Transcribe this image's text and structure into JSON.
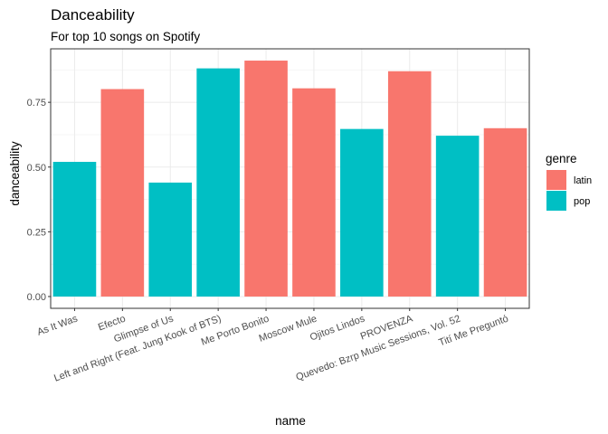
{
  "chart_data": {
    "type": "bar",
    "title": "Danceability",
    "subtitle": "For top 10 songs on Spotify",
    "xlabel": "name",
    "ylabel": "danceability",
    "categories": [
      "As It Was",
      "Efecto",
      "Glimpse of Us",
      "Left and Right (Feat. Jung Kook of BTS)",
      "Me Porto Bonito",
      "Moscow Mule",
      "Ojitos Lindos",
      "PROVENZA",
      "Quevedo: Bzrp Music Sessions, Vol. 52",
      "Tití Me Preguntó"
    ],
    "values": [
      0.52,
      0.801,
      0.44,
      0.881,
      0.911,
      0.804,
      0.647,
      0.87,
      0.621,
      0.65
    ],
    "genre": [
      "pop",
      "latin",
      "pop",
      "pop",
      "latin",
      "latin",
      "pop",
      "latin",
      "pop",
      "latin"
    ],
    "ylim": [
      -0.0455,
      0.9565
    ],
    "yticks": [
      0,
      0.25,
      0.5,
      0.75
    ],
    "ytick_labels": [
      "0.00",
      "0.25",
      "0.50",
      "0.75"
    ],
    "grid": true,
    "legend": {
      "title": "genre",
      "placement": "right",
      "entries": [
        {
          "label": "latin",
          "color": "#F8766D"
        },
        {
          "label": "pop",
          "color": "#00BFC4"
        }
      ]
    }
  }
}
